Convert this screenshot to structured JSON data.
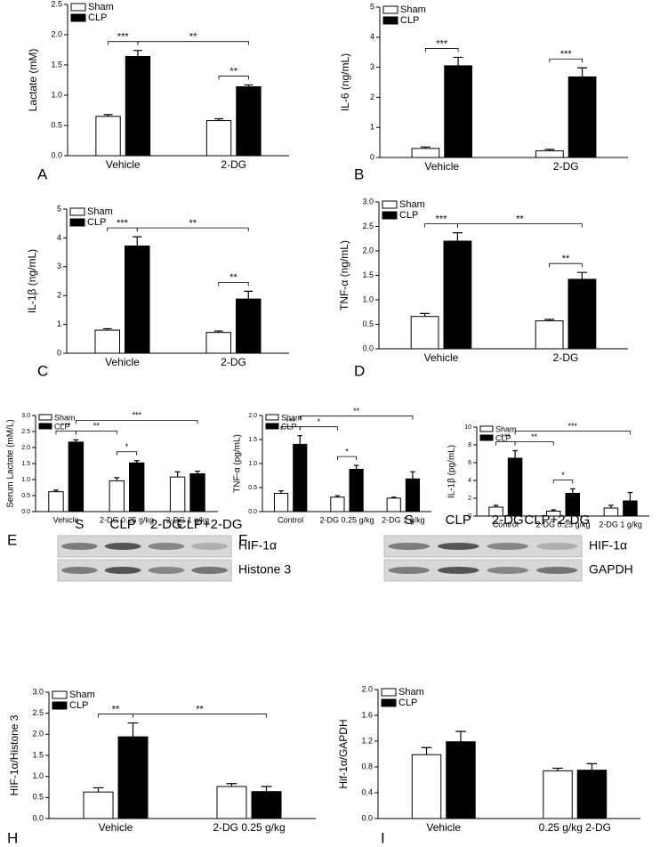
{
  "chart_data": [
    {
      "type": "bar",
      "panel": "A",
      "y_label": "Lactate (mM)",
      "categories": [
        "Vehicle",
        "2-DG"
      ],
      "series": [
        {
          "name": "Sham",
          "color": "#ffffff",
          "values": [
            0.65,
            0.58
          ],
          "errors": [
            0.03,
            0.03
          ]
        },
        {
          "name": "CLP",
          "color": "#000000",
          "values": [
            1.64,
            1.14
          ],
          "errors": [
            0.1,
            0.03
          ]
        }
      ],
      "ylim": [
        0,
        2.5
      ],
      "yticks": [
        {
          "value": 0,
          "label": "0.0"
        },
        {
          "value": 0.5,
          "label": "0.5"
        },
        {
          "value": 1,
          "label": "1.0"
        },
        {
          "value": 1.5,
          "label": "1.5"
        },
        {
          "value": 2,
          "label": "2.0"
        },
        {
          "value": 2.5,
          "label": "2.5"
        }
      ],
      "significance": [
        {
          "label": "***",
          "bars": [
            [
              0,
              0
            ],
            [
              1,
              0
            ]
          ]
        },
        {
          "label": "**",
          "bars": [
            [
              1,
              0
            ],
            [
              1,
              1
            ]
          ]
        },
        {
          "label": "**",
          "bars": [
            [
              0,
              1
            ],
            [
              1,
              1
            ]
          ]
        }
      ]
    },
    {
      "type": "bar",
      "panel": "B",
      "y_label": "IL-6 (ng/mL)",
      "categories": [
        "Vehicle",
        "2-DG"
      ],
      "series": [
        {
          "name": "Sham",
          "color": "#ffffff",
          "values": [
            0.3,
            0.22
          ],
          "errors": [
            0.05,
            0.05
          ]
        },
        {
          "name": "CLP",
          "color": "#000000",
          "values": [
            3.05,
            2.68
          ],
          "errors": [
            0.28,
            0.3
          ]
        }
      ],
      "ylim": [
        0,
        5
      ],
      "yticks": [
        0,
        1,
        2,
        3,
        4,
        5
      ],
      "significance": [
        {
          "label": "***",
          "bars": [
            [
              0,
              0
            ],
            [
              1,
              0
            ]
          ]
        },
        {
          "label": "***",
          "bars": [
            [
              0,
              1
            ],
            [
              1,
              1
            ]
          ]
        }
      ]
    },
    {
      "type": "bar",
      "panel": "C",
      "y_label": "IL-1β (ng/mL)",
      "categories": [
        "Vehicle",
        "2-DG"
      ],
      "series": [
        {
          "name": "Sham",
          "color": "#ffffff",
          "values": [
            0.8,
            0.72
          ],
          "errors": [
            0.05,
            0.05
          ]
        },
        {
          "name": "CLP",
          "color": "#000000",
          "values": [
            3.72,
            1.88
          ],
          "errors": [
            0.32,
            0.27
          ]
        }
      ],
      "ylim": [
        0,
        5
      ],
      "yticks": [
        0,
        1,
        2,
        3,
        4,
        5
      ],
      "significance": [
        {
          "label": "***",
          "bars": [
            [
              0,
              0
            ],
            [
              1,
              0
            ]
          ]
        },
        {
          "label": "**",
          "bars": [
            [
              1,
              0
            ],
            [
              1,
              1
            ]
          ]
        },
        {
          "label": "**",
          "bars": [
            [
              0,
              1
            ],
            [
              1,
              1
            ]
          ]
        }
      ]
    },
    {
      "type": "bar",
      "panel": "D",
      "y_label": "TNF-α (ng/mL)",
      "categories": [
        "Vehicle",
        "2-DG"
      ],
      "series": [
        {
          "name": "Sham",
          "color": "#ffffff",
          "values": [
            0.66,
            0.57
          ],
          "errors": [
            0.06,
            0.03
          ]
        },
        {
          "name": "CLP",
          "color": "#000000",
          "values": [
            2.2,
            1.42
          ],
          "errors": [
            0.17,
            0.14
          ]
        }
      ],
      "ylim": [
        0,
        3
      ],
      "yticks": [
        {
          "value": 0,
          "label": "0.0"
        },
        {
          "value": 0.5,
          "label": "0.5"
        },
        {
          "value": 1,
          "label": "1.0"
        },
        {
          "value": 1.5,
          "label": "1.5"
        },
        {
          "value": 2,
          "label": "2.0"
        },
        {
          "value": 2.5,
          "label": "2.5"
        },
        {
          "value": 3,
          "label": "3.0"
        }
      ],
      "significance": [
        {
          "label": "***",
          "bars": [
            [
              0,
              0
            ],
            [
              1,
              0
            ]
          ]
        },
        {
          "label": "**",
          "bars": [
            [
              1,
              0
            ],
            [
              1,
              1
            ]
          ]
        },
        {
          "label": "**",
          "bars": [
            [
              0,
              1
            ],
            [
              1,
              1
            ]
          ]
        }
      ]
    },
    {
      "type": "bar",
      "panel": "E",
      "y_label": "Serum Lactate (mM/L)",
      "categories": [
        "Vehicle",
        "2-DG 0.25 g/kg",
        "2-DG 1 g/kg"
      ],
      "series": [
        {
          "name": "Sham",
          "color": "#ffffff",
          "values": [
            0.62,
            0.96,
            1.08
          ],
          "errors": [
            0.05,
            0.1,
            0.16
          ]
        },
        {
          "name": "CLP",
          "color": "#000000",
          "values": [
            2.17,
            1.52,
            1.18
          ],
          "errors": [
            0.07,
            0.07,
            0.08
          ]
        }
      ],
      "ylim": [
        0,
        3
      ],
      "yticks": [
        {
          "value": 0,
          "label": "0.0"
        },
        {
          "value": 0.5,
          "label": "0.5"
        },
        {
          "value": 1,
          "label": "1.0"
        },
        {
          "value": 1.5,
          "label": "1.5"
        },
        {
          "value": 2,
          "label": "2.0"
        },
        {
          "value": 2.5,
          "label": "2.5"
        },
        {
          "value": 3,
          "label": "3.0"
        }
      ],
      "significance": [
        {
          "label": "***",
          "bars": [
            [
              0,
              0
            ],
            [
              1,
              0
            ]
          ]
        },
        {
          "label": "**",
          "bars": [
            [
              1,
              0
            ],
            [
              0,
              1
            ]
          ]
        },
        {
          "label": "*",
          "bars": [
            [
              0,
              1
            ],
            [
              1,
              1
            ]
          ]
        },
        {
          "label": "***",
          "bars": [
            [
              1,
              0
            ],
            [
              1,
              2
            ]
          ]
        }
      ]
    },
    {
      "type": "bar",
      "panel": "F",
      "y_label": "TNF-α (pg/mL)",
      "categories": [
        "Control",
        "2-DG 0.25 g/kg",
        "2-DG 1 g/kg"
      ],
      "series": [
        {
          "name": "Sham",
          "color": "#ffffff",
          "values": [
            0.38,
            0.3,
            0.28
          ],
          "errors": [
            0.05,
            0.03,
            0.02
          ]
        },
        {
          "name": "CLP",
          "color": "#000000",
          "values": [
            1.4,
            0.88,
            0.68
          ],
          "errors": [
            0.18,
            0.08,
            0.15
          ]
        }
      ],
      "ylim": [
        0,
        2
      ],
      "yticks": [
        {
          "value": 0,
          "label": "0.0"
        },
        {
          "value": 0.5,
          "label": "0.5"
        },
        {
          "value": 1,
          "label": "1.0"
        },
        {
          "value": 1.5,
          "label": "1.5"
        },
        {
          "value": 2,
          "label": "2.0"
        }
      ],
      "significance": [
        {
          "label": "***",
          "bars": [
            [
              0,
              0
            ],
            [
              1,
              0
            ]
          ]
        },
        {
          "label": "*",
          "bars": [
            [
              1,
              0
            ],
            [
              0,
              1
            ]
          ]
        },
        {
          "label": "*",
          "bars": [
            [
              0,
              1
            ],
            [
              1,
              1
            ]
          ]
        },
        {
          "label": "**",
          "bars": [
            [
              1,
              0
            ],
            [
              1,
              2
            ]
          ]
        }
      ]
    },
    {
      "type": "bar",
      "panel": "G",
      "y_label": "IL-1β (pg/mL)",
      "categories": [
        "Control",
        "2-DG 0.25 g/kg",
        "2-DG 1 g/kg"
      ],
      "series": [
        {
          "name": "Sham",
          "color": "#ffffff",
          "values": [
            1.0,
            0.55,
            0.9
          ],
          "errors": [
            0.2,
            0.15,
            0.3
          ]
        },
        {
          "name": "CLP",
          "color": "#000000",
          "values": [
            6.5,
            2.55,
            1.7
          ],
          "errors": [
            0.85,
            0.5,
            0.95
          ]
        }
      ],
      "ylim": [
        0,
        10
      ],
      "yticks": [
        0,
        2,
        4,
        6,
        8,
        10
      ],
      "significance": [
        {
          "label": "***",
          "bars": [
            [
              0,
              0
            ],
            [
              1,
              0
            ]
          ]
        },
        {
          "label": "**",
          "bars": [
            [
              1,
              0
            ],
            [
              0,
              1
            ]
          ]
        },
        {
          "label": "*",
          "bars": [
            [
              0,
              1
            ],
            [
              1,
              1
            ]
          ]
        },
        {
          "label": "***",
          "bars": [
            [
              1,
              0
            ],
            [
              1,
              2
            ]
          ]
        }
      ]
    },
    {
      "type": "bar",
      "panel": "H",
      "y_label": "HIF-1α/Histone 3",
      "categories": [
        "Vehicle",
        "2-DG 0.25 g/kg"
      ],
      "series": [
        {
          "name": "Sham",
          "color": "#ffffff",
          "values": [
            0.63,
            0.76
          ],
          "errors": [
            0.1,
            0.07
          ]
        },
        {
          "name": "CLP",
          "color": "#000000",
          "values": [
            1.94,
            0.64
          ],
          "errors": [
            0.33,
            0.12
          ]
        }
      ],
      "ylim": [
        0,
        3
      ],
      "yticks": [
        {
          "value": 0,
          "label": "0.0"
        },
        {
          "value": 0.5,
          "label": "0.5"
        },
        {
          "value": 1,
          "label": "1.0"
        },
        {
          "value": 1.5,
          "label": "1.5"
        },
        {
          "value": 2,
          "label": "2.0"
        },
        {
          "value": 2.5,
          "label": "2.5"
        },
        {
          "value": 3,
          "label": "3.0"
        }
      ],
      "significance": [
        {
          "label": "**",
          "bars": [
            [
              0,
              0
            ],
            [
              1,
              0
            ]
          ]
        },
        {
          "label": "**",
          "bars": [
            [
              1,
              0
            ],
            [
              1,
              1
            ]
          ]
        }
      ],
      "blot": {
        "lanes": [
          "S",
          "CLP",
          "2-DG",
          "CLP+2-DG"
        ],
        "rows": [
          "HIF-1α",
          "Histone 3"
        ]
      }
    },
    {
      "type": "bar",
      "panel": "I",
      "y_label": "Hif-1α/GAPDH",
      "categories": [
        "Vehicle",
        "0.25 g/kg 2-DG"
      ],
      "series": [
        {
          "name": "Sham",
          "color": "#ffffff",
          "values": [
            0.99,
            0.74
          ],
          "errors": [
            0.11,
            0.04
          ]
        },
        {
          "name": "CLP",
          "color": "#000000",
          "values": [
            1.19,
            0.75
          ],
          "errors": [
            0.16,
            0.1
          ]
        }
      ],
      "ylim": [
        0,
        2
      ],
      "yticks": [
        {
          "value": 0,
          "label": "0.0"
        },
        {
          "value": 0.4,
          "label": "0.4"
        },
        {
          "value": 0.8,
          "label": "0.8"
        },
        {
          "value": 1.2,
          "label": "1.2"
        },
        {
          "value": 1.6,
          "label": "1.6"
        },
        {
          "value": 2,
          "label": "2.0"
        }
      ],
      "significance": [],
      "blot": {
        "lanes": [
          "S",
          "CLP",
          "2-DG",
          "CLP+2-DG"
        ],
        "rows": [
          "HIF-1α",
          "GAPDH"
        ]
      }
    }
  ]
}
